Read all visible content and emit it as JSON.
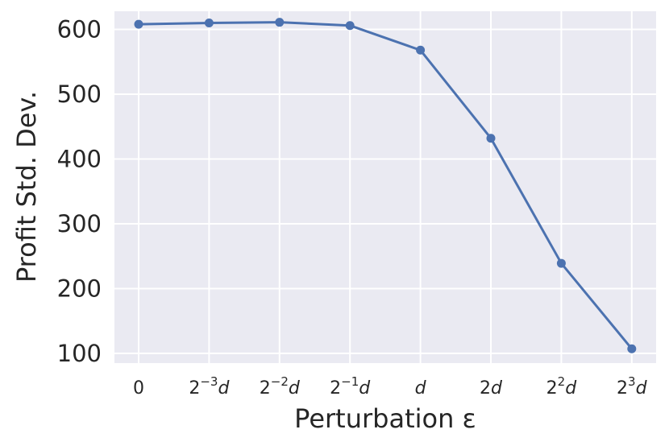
{
  "chart_data": {
    "type": "line",
    "title": "",
    "xlabel": "Perturbation ε",
    "ylabel": "Profit Std. Dev.",
    "categories": [
      "0",
      "2^-3 d",
      "2^-2 d",
      "2^-1 d",
      "d",
      "2d",
      "2^2 d",
      "2^3 d"
    ],
    "tick_labels": [
      {
        "base": "0",
        "sup": "",
        "tail": ""
      },
      {
        "base": "2",
        "sup": "−3",
        "tail": "d"
      },
      {
        "base": "2",
        "sup": "−2",
        "tail": "d"
      },
      {
        "base": "2",
        "sup": "−1",
        "tail": "d"
      },
      {
        "base": "",
        "sup": "",
        "tail": "d"
      },
      {
        "base": "2",
        "sup": "",
        "tail": "d"
      },
      {
        "base": "2",
        "sup": "2",
        "tail": "d"
      },
      {
        "base": "2",
        "sup": "3",
        "tail": "d"
      }
    ],
    "series": [
      {
        "values": [
          608,
          610,
          611,
          606,
          568,
          432,
          239,
          107
        ]
      }
    ],
    "yticks": [
      100,
      200,
      300,
      400,
      500,
      600
    ],
    "ylim": [
      85,
      628
    ],
    "grid": true,
    "line_color": "#4c72b0",
    "background_color": "#eaeaf2"
  }
}
